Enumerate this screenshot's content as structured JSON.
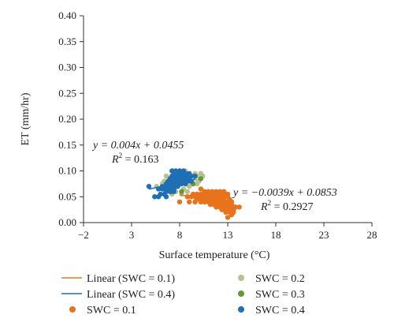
{
  "chart_data": {
    "type": "scatter",
    "xlabel": "Surface temperature (°C)",
    "ylabel": "ET (mm/hr)",
    "xlim": [
      -2,
      28
    ],
    "ylim": [
      0.0,
      0.4
    ],
    "x_ticks": [
      "−2",
      "3",
      "8",
      "13",
      "18",
      "23",
      "28"
    ],
    "x_tick_values": [
      -2,
      3,
      8,
      13,
      18,
      23,
      28
    ],
    "y_ticks": [
      "0.00",
      "0.05",
      "0.10",
      "0.15",
      "0.20",
      "0.25",
      "0.30",
      "0.35",
      "0.40"
    ],
    "y_tick_values": [
      0,
      0.05,
      0.1,
      0.15,
      0.2,
      0.25,
      0.3,
      0.35,
      0.4
    ],
    "grid": false,
    "legend_position": "bottom",
    "series": [
      {
        "name": "SWC = 0.1",
        "color": "#e8731d",
        "points": [
          [
            10.2,
            0.065
          ],
          [
            10.6,
            0.06
          ],
          [
            11.0,
            0.06
          ],
          [
            11.4,
            0.06
          ],
          [
            11.8,
            0.06
          ],
          [
            12.2,
            0.06
          ],
          [
            12.6,
            0.06
          ],
          [
            13.0,
            0.055
          ],
          [
            9.4,
            0.055
          ],
          [
            9.8,
            0.055
          ],
          [
            10.2,
            0.055
          ],
          [
            10.6,
            0.055
          ],
          [
            11.0,
            0.055
          ],
          [
            11.4,
            0.055
          ],
          [
            11.8,
            0.055
          ],
          [
            12.2,
            0.055
          ],
          [
            12.6,
            0.055
          ],
          [
            13.0,
            0.05
          ],
          [
            8.8,
            0.05
          ],
          [
            9.2,
            0.05
          ],
          [
            9.6,
            0.05
          ],
          [
            10.0,
            0.05
          ],
          [
            10.4,
            0.05
          ],
          [
            10.8,
            0.05
          ],
          [
            11.2,
            0.05
          ],
          [
            11.6,
            0.05
          ],
          [
            12.0,
            0.05
          ],
          [
            12.4,
            0.05
          ],
          [
            12.8,
            0.05
          ],
          [
            13.2,
            0.045
          ],
          [
            9.8,
            0.045
          ],
          [
            10.2,
            0.045
          ],
          [
            10.6,
            0.045
          ],
          [
            11.0,
            0.045
          ],
          [
            11.4,
            0.045
          ],
          [
            11.8,
            0.045
          ],
          [
            12.2,
            0.045
          ],
          [
            12.6,
            0.045
          ],
          [
            13.4,
            0.04
          ],
          [
            8.0,
            0.04
          ],
          [
            9.0,
            0.04
          ],
          [
            9.6,
            0.04
          ],
          [
            10.2,
            0.04
          ],
          [
            10.6,
            0.04
          ],
          [
            11.0,
            0.04
          ],
          [
            11.4,
            0.04
          ],
          [
            11.8,
            0.04
          ],
          [
            12.2,
            0.04
          ],
          [
            12.6,
            0.04
          ],
          [
            13.0,
            0.04
          ],
          [
            13.4,
            0.035
          ],
          [
            11.2,
            0.035
          ],
          [
            11.6,
            0.035
          ],
          [
            12.0,
            0.035
          ],
          [
            12.4,
            0.035
          ],
          [
            12.8,
            0.035
          ],
          [
            13.2,
            0.035
          ],
          [
            13.6,
            0.03
          ],
          [
            11.8,
            0.03
          ],
          [
            12.2,
            0.03
          ],
          [
            12.6,
            0.03
          ],
          [
            13.0,
            0.03
          ],
          [
            13.4,
            0.03
          ],
          [
            13.8,
            0.03
          ],
          [
            14.2,
            0.03
          ],
          [
            12.4,
            0.025
          ],
          [
            12.8,
            0.025
          ],
          [
            13.2,
            0.025
          ],
          [
            13.6,
            0.025
          ],
          [
            12.8,
            0.02
          ],
          [
            13.2,
            0.02
          ],
          [
            13.6,
            0.02
          ],
          [
            13.4,
            0.015
          ],
          [
            13.0,
            0.01
          ]
        ]
      },
      {
        "name": "SWC = 0.2",
        "color": "#b9c08e",
        "points": [
          [
            7.4,
            0.1
          ],
          [
            8.0,
            0.1
          ],
          [
            8.6,
            0.1
          ],
          [
            8.8,
            0.095
          ],
          [
            9.6,
            0.095
          ],
          [
            10.2,
            0.095
          ],
          [
            6.6,
            0.09
          ],
          [
            7.6,
            0.09
          ],
          [
            8.4,
            0.09
          ],
          [
            9.0,
            0.09
          ],
          [
            9.8,
            0.09
          ],
          [
            10.4,
            0.09
          ],
          [
            7.0,
            0.085
          ],
          [
            8.0,
            0.085
          ],
          [
            8.8,
            0.085
          ],
          [
            9.6,
            0.085
          ],
          [
            6.4,
            0.08
          ],
          [
            7.2,
            0.08
          ],
          [
            8.4,
            0.08
          ],
          [
            9.2,
            0.08
          ],
          [
            10.0,
            0.08
          ],
          [
            6.2,
            0.075
          ],
          [
            7.6,
            0.075
          ],
          [
            8.8,
            0.075
          ],
          [
            9.8,
            0.075
          ],
          [
            5.6,
            0.07
          ],
          [
            6.8,
            0.07
          ],
          [
            7.8,
            0.07
          ],
          [
            9.0,
            0.07
          ],
          [
            6.2,
            0.065
          ],
          [
            7.4,
            0.065
          ],
          [
            8.4,
            0.065
          ],
          [
            6.6,
            0.06
          ],
          [
            7.6,
            0.06
          ],
          [
            8.8,
            0.06
          ],
          [
            7.2,
            0.055
          ],
          [
            8.2,
            0.055
          ]
        ]
      },
      {
        "name": "SWC = 0.3",
        "color": "#5e9a3a",
        "points": [
          [
            6.4,
            0.065
          ],
          [
            7.2,
            0.06
          ],
          [
            8.2,
            0.06
          ],
          [
            9.4,
            0.075
          ],
          [
            10.2,
            0.085
          ]
        ]
      },
      {
        "name": "SWC = 0.4",
        "color": "#1f6fb5",
        "points": [
          [
            7.2,
            0.1
          ],
          [
            7.6,
            0.1
          ],
          [
            8.0,
            0.1
          ],
          [
            8.4,
            0.1
          ],
          [
            7.4,
            0.095
          ],
          [
            7.8,
            0.095
          ],
          [
            8.2,
            0.095
          ],
          [
            8.6,
            0.095
          ],
          [
            9.0,
            0.095
          ],
          [
            7.2,
            0.09
          ],
          [
            7.6,
            0.09
          ],
          [
            8.0,
            0.09
          ],
          [
            8.4,
            0.09
          ],
          [
            8.8,
            0.09
          ],
          [
            9.2,
            0.09
          ],
          [
            9.6,
            0.09
          ],
          [
            7.0,
            0.085
          ],
          [
            7.4,
            0.085
          ],
          [
            7.8,
            0.085
          ],
          [
            8.2,
            0.085
          ],
          [
            8.6,
            0.085
          ],
          [
            9.0,
            0.085
          ],
          [
            6.8,
            0.08
          ],
          [
            7.2,
            0.08
          ],
          [
            7.6,
            0.08
          ],
          [
            8.0,
            0.08
          ],
          [
            8.4,
            0.08
          ],
          [
            8.8,
            0.08
          ],
          [
            9.2,
            0.08
          ],
          [
            6.6,
            0.075
          ],
          [
            7.0,
            0.075
          ],
          [
            7.4,
            0.075
          ],
          [
            7.8,
            0.075
          ],
          [
            8.2,
            0.075
          ],
          [
            8.6,
            0.075
          ],
          [
            4.8,
            0.07
          ],
          [
            6.2,
            0.07
          ],
          [
            6.6,
            0.07
          ],
          [
            7.0,
            0.07
          ],
          [
            7.4,
            0.07
          ],
          [
            7.8,
            0.07
          ],
          [
            5.8,
            0.065
          ],
          [
            6.2,
            0.065
          ],
          [
            6.6,
            0.065
          ],
          [
            7.0,
            0.065
          ],
          [
            7.4,
            0.065
          ],
          [
            6.6,
            0.06
          ],
          [
            7.0,
            0.06
          ],
          [
            7.4,
            0.06
          ],
          [
            6.0,
            0.055
          ],
          [
            6.4,
            0.055
          ],
          [
            5.4,
            0.05
          ],
          [
            5.8,
            0.05
          ],
          [
            6.6,
            0.05
          ]
        ]
      }
    ],
    "fit_lines": [
      {
        "name": "Linear (SWC = 0.1)",
        "color": "#e8731d",
        "slope": -0.0039,
        "intercept": 0.0853,
        "x_range": [
          8.0,
          14.2
        ]
      },
      {
        "name": "Linear (SWC = 0.4)",
        "color": "#1f6fb5",
        "slope": 0.004,
        "intercept": 0.0455,
        "x_range": [
          4.8,
          9.6
        ]
      }
    ],
    "annotations": [
      {
        "equation": "y = 0.004x + 0.0455",
        "r2_label": "R",
        "r2_sup": "2",
        "r2_value": " = 0.163"
      },
      {
        "equation": "y = −0.0039x + 0.0853",
        "r2_label": "R",
        "r2_sup": "2",
        "r2_value": " = 0.2927"
      }
    ],
    "legend": [
      {
        "label": "Linear (SWC = 0.1)",
        "kind": "line",
        "color": "#e8731d"
      },
      {
        "label": "SWC = 0.2",
        "kind": "marker",
        "color": "#b9c08e"
      },
      {
        "label": "Linear (SWC = 0.4)",
        "kind": "line",
        "color": "#1f6fb5"
      },
      {
        "label": "SWC = 0.3",
        "kind": "marker",
        "color": "#5e9a3a"
      },
      {
        "label": "SWC = 0.1",
        "kind": "marker",
        "color": "#e8731d"
      },
      {
        "label": "SWC = 0.4",
        "kind": "marker",
        "color": "#1f6fb5"
      }
    ]
  }
}
